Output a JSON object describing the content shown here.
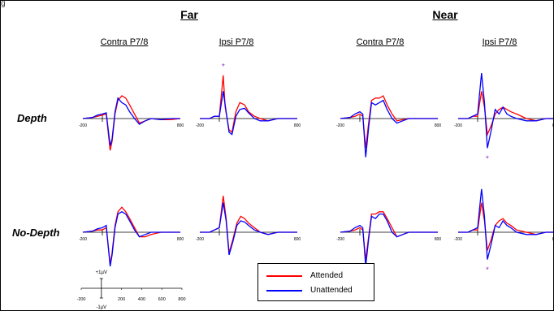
{
  "corner_label": "g",
  "groups": [
    {
      "title": "Far"
    },
    {
      "title": "Near"
    }
  ],
  "column_titles": [
    "Contra P7/8",
    "Ipsi P7/8",
    "Contra P7/8",
    "Ipsi P7/8"
  ],
  "row_labels": [
    "Depth",
    "No-Depth"
  ],
  "legend": {
    "attended": "Attended",
    "unattended": "Unattended"
  },
  "colors": {
    "attended": "#ff0000",
    "unattended": "#0000ff",
    "significance": "#9933cc"
  },
  "scale_bar": {
    "y_top_label": "+1µV",
    "y_bottom_label": "-1µV",
    "x_tick_labels": [
      "-200",
      "200",
      "400",
      "600",
      "800"
    ]
  },
  "chart_data": {
    "type": "line",
    "x_unit": "ms",
    "xlim": [
      -200,
      800
    ],
    "panel_tick_labels": [
      "-200",
      "800"
    ],
    "significance_marker": "*",
    "panels": [
      {
        "row": "Depth",
        "group": "Far",
        "column": "Contra P7/8",
        "series": [
          {
            "name": "Attended",
            "x": [
              -200,
              -100,
              -50,
              0,
              40,
              80,
              100,
              130,
              160,
              200,
              240,
              280,
              330,
              380,
              440,
              500,
              600,
              700,
              800
            ],
            "y": [
              0,
              0.05,
              0.1,
              0.15,
              0.2,
              -1.4,
              -1.0,
              0.2,
              0.8,
              1.0,
              0.9,
              0.6,
              0.2,
              -0.2,
              -0.1,
              0,
              -0.05,
              -0.05,
              0
            ]
          },
          {
            "name": "Unattended",
            "x": [
              -200,
              -100,
              -50,
              0,
              40,
              80,
              100,
              130,
              160,
              200,
              240,
              280,
              330,
              380,
              440,
              500,
              600,
              700,
              800
            ],
            "y": [
              0,
              0.05,
              0.15,
              0.2,
              0.25,
              -1.2,
              -0.9,
              0.3,
              0.9,
              0.7,
              0.6,
              0.3,
              0,
              -0.25,
              -0.1,
              0,
              -0.05,
              0,
              0
            ]
          }
        ],
        "significance": []
      },
      {
        "row": "Depth",
        "group": "Far",
        "column": "Ipsi P7/8",
        "series": [
          {
            "name": "Attended",
            "x": [
              -200,
              -100,
              -50,
              0,
              40,
              60,
              100,
              130,
              170,
              210,
              260,
              300,
              360,
              420,
              500,
              600,
              700,
              800
            ],
            "y": [
              0,
              0,
              0.1,
              0.1,
              1.9,
              0.5,
              -0.5,
              -0.6,
              0.3,
              0.7,
              0.6,
              0.3,
              0.1,
              0,
              -0.1,
              0,
              0,
              0
            ]
          },
          {
            "name": "Unattended",
            "x": [
              -200,
              -100,
              -50,
              0,
              40,
              60,
              100,
              130,
              170,
              210,
              260,
              300,
              360,
              420,
              500,
              600,
              700,
              800
            ],
            "y": [
              0,
              0,
              0.1,
              0.1,
              1.2,
              0.6,
              -0.6,
              -0.7,
              0.1,
              0.4,
              0.45,
              0.25,
              0,
              -0.1,
              -0.1,
              0,
              0,
              0
            ]
          }
        ],
        "significance": [
          {
            "x": 40,
            "position": "above"
          }
        ]
      },
      {
        "row": "Depth",
        "group": "Near",
        "column": "Contra P7/8",
        "series": [
          {
            "name": "Attended",
            "x": [
              -200,
              -100,
              -50,
              0,
              30,
              60,
              90,
              120,
              160,
              200,
              240,
              280,
              330,
              380,
              440,
              500,
              600,
              700,
              800
            ],
            "y": [
              0,
              0.05,
              0.1,
              0.2,
              0.1,
              -1.3,
              -0.2,
              0.8,
              0.9,
              0.9,
              1.0,
              0.6,
              0.2,
              -0.1,
              -0.05,
              0,
              0,
              0,
              0
            ]
          },
          {
            "name": "Unattended",
            "x": [
              -200,
              -100,
              -50,
              0,
              30,
              60,
              90,
              120,
              160,
              200,
              240,
              280,
              330,
              380,
              440,
              500,
              600,
              700,
              800
            ],
            "y": [
              0,
              0.05,
              0.2,
              0.3,
              0.2,
              -1.7,
              -0.4,
              0.7,
              0.6,
              0.7,
              0.8,
              0.4,
              0,
              -0.2,
              -0.1,
              0,
              0,
              0,
              0
            ]
          }
        ],
        "significance": []
      },
      {
        "row": "Depth",
        "group": "Near",
        "column": "Ipsi P7/8",
        "series": [
          {
            "name": "Attended",
            "x": [
              -200,
              -100,
              -50,
              0,
              40,
              70,
              100,
              140,
              180,
              220,
              260,
              300,
              340,
              400,
              500,
              600,
              700,
              800
            ],
            "y": [
              0,
              0,
              0.1,
              0.1,
              1.2,
              0.5,
              -0.7,
              -0.3,
              0.2,
              0.4,
              0.5,
              0.4,
              0.3,
              0.2,
              0,
              -0.1,
              0,
              0
            ]
          },
          {
            "name": "Unattended",
            "x": [
              -200,
              -100,
              -50,
              0,
              40,
              70,
              100,
              140,
              180,
              220,
              260,
              300,
              340,
              400,
              500,
              600,
              700,
              800
            ],
            "y": [
              0,
              0,
              0.1,
              0.2,
              2.0,
              0.7,
              -1.3,
              -0.5,
              0.4,
              0.2,
              0.5,
              0.2,
              0.1,
              0,
              -0.1,
              -0.1,
              0,
              0
            ]
          }
        ],
        "significance": [
          {
            "x": 100,
            "position": "below"
          }
        ]
      },
      {
        "row": "No-Depth",
        "group": "Far",
        "column": "Contra P7/8",
        "series": [
          {
            "name": "Attended",
            "x": [
              -200,
              -100,
              -50,
              0,
              40,
              80,
              100,
              130,
              160,
              200,
              240,
              280,
              330,
              380,
              440,
              500,
              600,
              700,
              800
            ],
            "y": [
              0,
              0.05,
              0.1,
              0.1,
              0.2,
              -1.4,
              -0.9,
              0.3,
              0.9,
              1.1,
              0.9,
              0.6,
              0.2,
              -0.2,
              -0.2,
              -0.1,
              0,
              0,
              0
            ]
          },
          {
            "name": "Unattended",
            "x": [
              -200,
              -100,
              -50,
              0,
              40,
              80,
              100,
              130,
              160,
              200,
              240,
              280,
              330,
              380,
              440,
              500,
              600,
              700,
              800
            ],
            "y": [
              0,
              0.05,
              0.15,
              0.2,
              0.3,
              -1.5,
              -1.0,
              0.2,
              0.8,
              0.9,
              0.8,
              0.5,
              0.1,
              -0.2,
              -0.1,
              0,
              0,
              0,
              0
            ]
          }
        ],
        "significance": []
      },
      {
        "row": "No-Depth",
        "group": "Far",
        "column": "Ipsi P7/8",
        "series": [
          {
            "name": "Attended",
            "x": [
              -200,
              -100,
              -50,
              0,
              40,
              70,
              100,
              140,
              180,
              220,
              260,
              300,
              360,
              420,
              500,
              600,
              700,
              800
            ],
            "y": [
              0,
              0,
              0.1,
              0.2,
              1.6,
              0.6,
              -0.9,
              -0.3,
              0.4,
              0.7,
              0.6,
              0.4,
              0.2,
              0,
              -0.1,
              0,
              0,
              0
            ]
          },
          {
            "name": "Unattended",
            "x": [
              -200,
              -100,
              -50,
              0,
              40,
              70,
              100,
              140,
              180,
              220,
              260,
              300,
              360,
              420,
              500,
              600,
              700,
              800
            ],
            "y": [
              0,
              0,
              0.1,
              0.2,
              1.3,
              0.5,
              -1.0,
              -0.4,
              0.3,
              0.5,
              0.45,
              0.3,
              0.1,
              0,
              -0.1,
              0,
              0,
              0
            ]
          }
        ],
        "significance": []
      },
      {
        "row": "No-Depth",
        "group": "Near",
        "column": "Contra P7/8",
        "series": [
          {
            "name": "Attended",
            "x": [
              -200,
              -100,
              -50,
              0,
              30,
              60,
              90,
              120,
              160,
              200,
              240,
              280,
              330,
              380,
              440,
              500,
              600,
              700,
              800
            ],
            "y": [
              0,
              0.05,
              0.1,
              0.2,
              0.1,
              -1.2,
              -0.2,
              0.8,
              0.8,
              0.9,
              0.9,
              0.6,
              0.2,
              -0.2,
              -0.1,
              0,
              0,
              0,
              0
            ]
          },
          {
            "name": "Unattended",
            "x": [
              -200,
              -100,
              -50,
              0,
              30,
              60,
              90,
              120,
              160,
              200,
              240,
              280,
              330,
              380,
              440,
              500,
              600,
              700,
              800
            ],
            "y": [
              0,
              0.05,
              0.2,
              0.3,
              0.2,
              -1.5,
              -0.3,
              0.7,
              0.6,
              0.8,
              0.8,
              0.5,
              0,
              -0.2,
              -0.1,
              0,
              0,
              0,
              0
            ]
          }
        ],
        "significance": []
      },
      {
        "row": "No-Depth",
        "group": "Near",
        "column": "Ipsi P7/8",
        "series": [
          {
            "name": "Attended",
            "x": [
              -200,
              -100,
              -50,
              0,
              40,
              70,
              100,
              140,
              180,
              220,
              260,
              300,
              340,
              400,
              500,
              600,
              700,
              800
            ],
            "y": [
              0,
              0,
              0.1,
              0.1,
              1.3,
              0.5,
              -0.8,
              -0.3,
              0.3,
              0.5,
              0.6,
              0.4,
              0.3,
              0.1,
              0,
              -0.1,
              0,
              0
            ]
          },
          {
            "name": "Unattended",
            "x": [
              -200,
              -100,
              -50,
              0,
              40,
              70,
              100,
              140,
              180,
              220,
              260,
              300,
              340,
              400,
              500,
              600,
              700,
              800
            ],
            "y": [
              0,
              0,
              0.1,
              0.2,
              1.9,
              0.7,
              -1.2,
              -0.5,
              0.3,
              0.2,
              0.5,
              0.3,
              0.2,
              0,
              -0.1,
              -0.1,
              0,
              0
            ]
          }
        ],
        "significance": [
          {
            "x": 100,
            "position": "below"
          }
        ]
      }
    ]
  }
}
